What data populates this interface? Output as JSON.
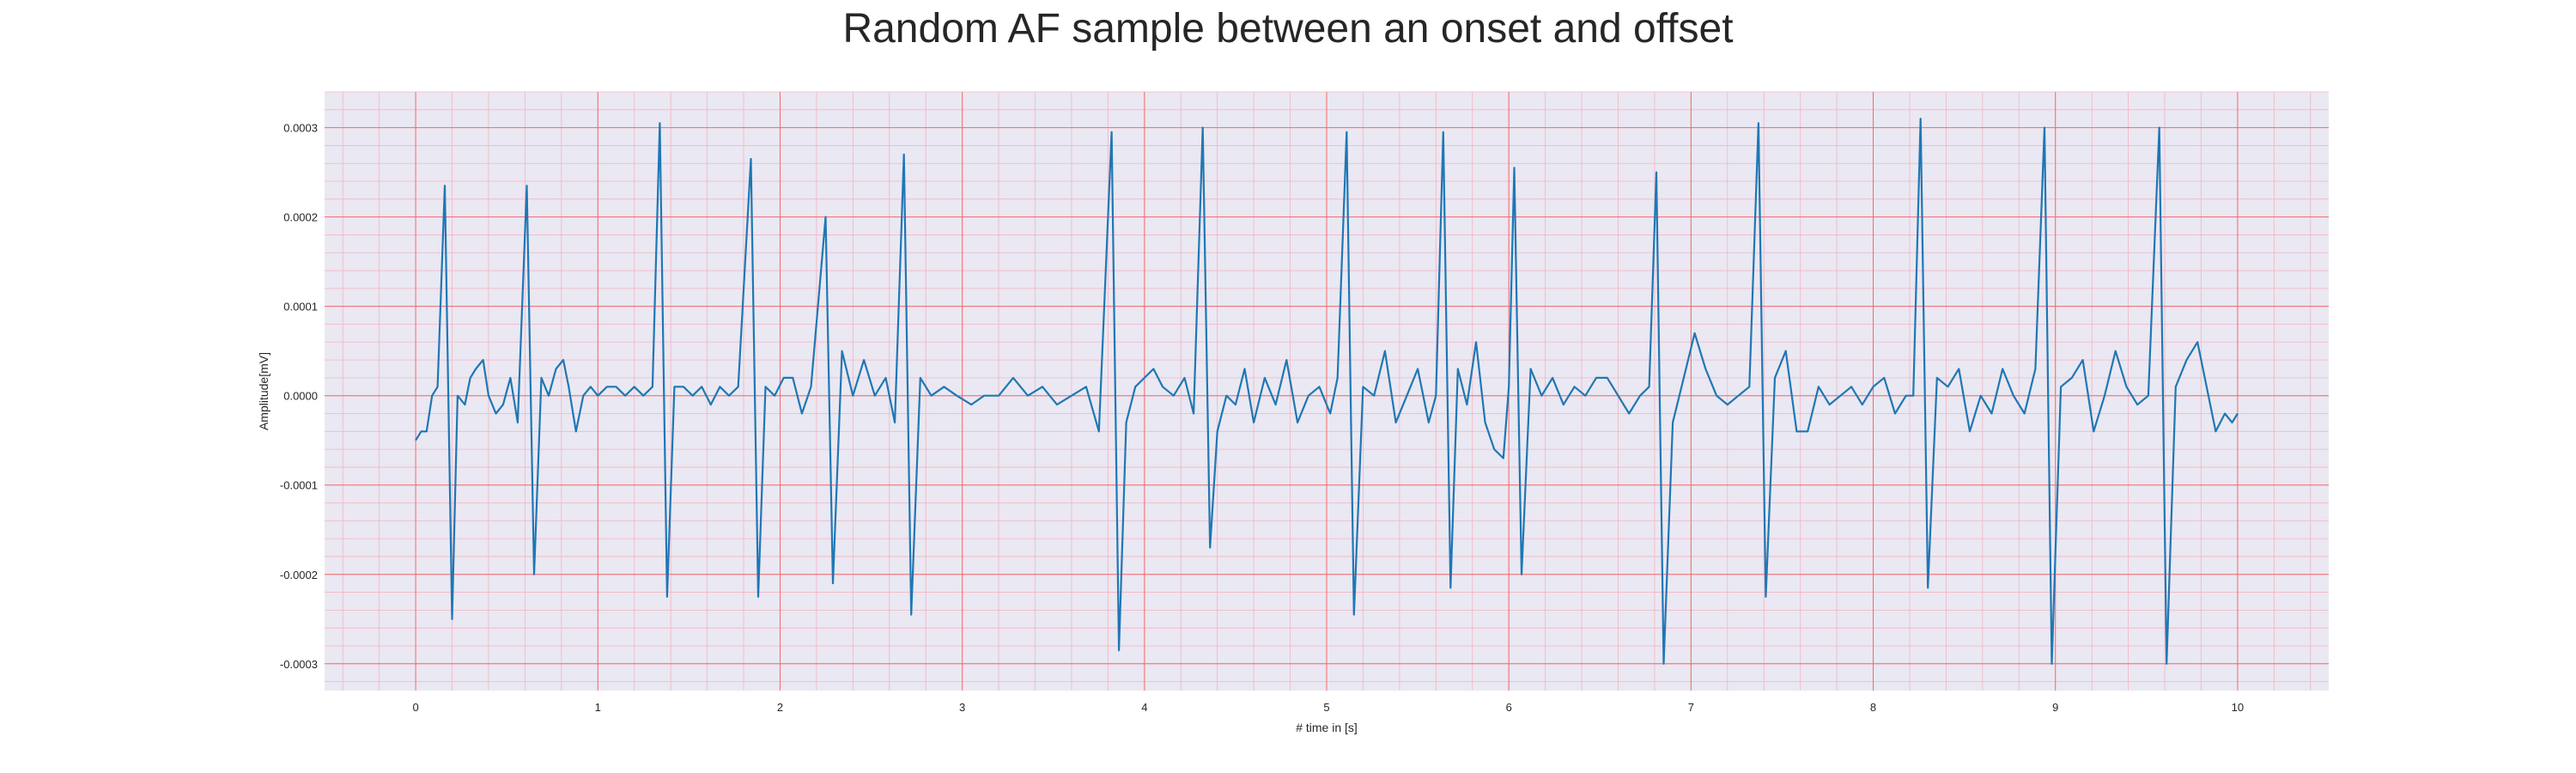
{
  "chart_data": {
    "type": "line",
    "title": "Random AF sample between an onset and offset",
    "xlabel": "# time in [s]",
    "ylabel": "Amplitude[mV]",
    "xlim": [
      -0.5,
      10.5
    ],
    "ylim": [
      -0.00033,
      0.00034
    ],
    "xticks": [
      0,
      1,
      2,
      3,
      4,
      5,
      6,
      7,
      8,
      9,
      10
    ],
    "xtick_labels": [
      "0",
      "1",
      "2",
      "3",
      "4",
      "5",
      "6",
      "7",
      "8",
      "9",
      "10"
    ],
    "yticks": [
      -0.0003,
      -0.0002,
      -0.0001,
      0.0,
      0.0001,
      0.0002,
      0.0003
    ],
    "ytick_labels": [
      "-0.0003",
      "-0.0002",
      "-0.0001",
      "0.0000",
      "0.0001",
      "0.0002",
      "0.0003"
    ],
    "grid": true,
    "minor_grid": true,
    "colors": {
      "line": "#1f77b4",
      "background": "#eae8f2",
      "major_grid": "#f26b6b",
      "minor_grid": "#f4b3c2"
    },
    "beats": [
      {
        "t": 0.16,
        "peak": 0.000235,
        "trough": -0.00025
      },
      {
        "t": 0.61,
        "peak": 0.000235,
        "trough": -0.0002
      },
      {
        "t": 1.34,
        "peak": 0.000305,
        "trough": -0.000225
      },
      {
        "t": 1.84,
        "peak": 0.000265,
        "trough": -0.000225
      },
      {
        "t": 2.25,
        "peak": 0.0002,
        "trough": -0.00021
      },
      {
        "t": 2.68,
        "peak": 0.00027,
        "trough": -0.000245
      },
      {
        "t": 3.82,
        "peak": 0.000295,
        "trough": -0.000285
      },
      {
        "t": 4.32,
        "peak": 0.0003,
        "trough": -0.00017
      },
      {
        "t": 5.11,
        "peak": 0.000295,
        "trough": -0.000245
      },
      {
        "t": 5.64,
        "peak": 0.000295,
        "trough": -0.000215
      },
      {
        "t": 6.03,
        "peak": 0.000255,
        "trough": -0.0002
      },
      {
        "t": 6.81,
        "peak": 0.00025,
        "trough": -0.0003
      },
      {
        "t": 7.37,
        "peak": 0.000305,
        "trough": -0.000225
      },
      {
        "t": 8.26,
        "peak": 0.00031,
        "trough": -0.000215
      },
      {
        "t": 8.94,
        "peak": 0.0003,
        "trough": -0.0003
      },
      {
        "t": 9.57,
        "peak": 0.0003,
        "trough": -0.0003
      }
    ],
    "series": [
      {
        "x": [
          0.0,
          0.03,
          0.06,
          0.09,
          0.12,
          0.16,
          0.2,
          0.23,
          0.27,
          0.3,
          0.33,
          0.37,
          0.4,
          0.44,
          0.48,
          0.52,
          0.56,
          0.61,
          0.65,
          0.69,
          0.73,
          0.77,
          0.81,
          0.84,
          0.88,
          0.92,
          0.96,
          1.0,
          1.05,
          1.1,
          1.15,
          1.2,
          1.25,
          1.3,
          1.34,
          1.38,
          1.42,
          1.47,
          1.52,
          1.57,
          1.62,
          1.67,
          1.72,
          1.77,
          1.84,
          1.88,
          1.92,
          1.97,
          2.02,
          2.07,
          2.12,
          2.17,
          2.25,
          2.29,
          2.34,
          2.4,
          2.46,
          2.52,
          2.58,
          2.63,
          2.68,
          2.72,
          2.77,
          2.83,
          2.9,
          2.97,
          3.05,
          3.12,
          3.2,
          3.28,
          3.36,
          3.44,
          3.52,
          3.6,
          3.68,
          3.75,
          3.82,
          3.86,
          3.9,
          3.95,
          4.0,
          4.05,
          4.1,
          4.16,
          4.22,
          4.27,
          4.32,
          4.36,
          4.4,
          4.45,
          4.5,
          4.55,
          4.6,
          4.66,
          4.72,
          4.78,
          4.84,
          4.9,
          4.96,
          5.02,
          5.06,
          5.11,
          5.15,
          5.2,
          5.26,
          5.32,
          5.38,
          5.44,
          5.5,
          5.56,
          5.6,
          5.64,
          5.68,
          5.72,
          5.77,
          5.82,
          5.87,
          5.92,
          5.97,
          6.0,
          6.03,
          6.07,
          6.12,
          6.18,
          6.24,
          6.3,
          6.36,
          6.42,
          6.48,
          6.54,
          6.6,
          6.66,
          6.72,
          6.77,
          6.81,
          6.85,
          6.9,
          6.96,
          7.02,
          7.08,
          7.14,
          7.2,
          7.26,
          7.32,
          7.37,
          7.41,
          7.46,
          7.52,
          7.58,
          7.64,
          7.7,
          7.76,
          7.82,
          7.88,
          7.94,
          8.0,
          8.06,
          8.12,
          8.18,
          8.22,
          8.26,
          8.3,
          8.35,
          8.41,
          8.47,
          8.53,
          8.59,
          8.65,
          8.71,
          8.77,
          8.83,
          8.89,
          8.94,
          8.98,
          9.03,
          9.09,
          9.15,
          9.21,
          9.27,
          9.33,
          9.39,
          9.45,
          9.51,
          9.57,
          9.61,
          9.66,
          9.72,
          9.78,
          9.83,
          9.88,
          9.93,
          9.97,
          10.0
        ],
        "y": [
          -5e-05,
          -4e-05,
          -4e-05,
          0.0,
          1e-05,
          0.000235,
          -0.00025,
          0.0,
          -1e-05,
          2e-05,
          3e-05,
          4e-05,
          0.0,
          -2e-05,
          -1e-05,
          2e-05,
          -3e-05,
          0.000235,
          -0.0002,
          2e-05,
          0.0,
          3e-05,
          4e-05,
          1e-05,
          -4e-05,
          0.0,
          1e-05,
          0.0,
          1e-05,
          1e-05,
          0.0,
          1e-05,
          0.0,
          1e-05,
          0.000305,
          -0.000225,
          1e-05,
          1e-05,
          0.0,
          1e-05,
          -1e-05,
          1e-05,
          0.0,
          1e-05,
          0.000265,
          -0.000225,
          1e-05,
          0.0,
          2e-05,
          2e-05,
          -2e-05,
          1e-05,
          0.0002,
          -0.00021,
          5e-05,
          0.0,
          4e-05,
          0.0,
          2e-05,
          -3e-05,
          0.00027,
          -0.000245,
          2e-05,
          0.0,
          1e-05,
          0.0,
          -1e-05,
          0.0,
          0.0,
          2e-05,
          0.0,
          1e-05,
          -1e-05,
          0.0,
          1e-05,
          -4e-05,
          0.000295,
          -0.000285,
          -3e-05,
          1e-05,
          2e-05,
          3e-05,
          1e-05,
          0.0,
          2e-05,
          -2e-05,
          0.0003,
          -0.00017,
          -4e-05,
          0.0,
          -1e-05,
          3e-05,
          -3e-05,
          2e-05,
          -1e-05,
          4e-05,
          -3e-05,
          0.0,
          1e-05,
          -2e-05,
          2e-05,
          0.000295,
          -0.000245,
          1e-05,
          0.0,
          5e-05,
          -3e-05,
          0.0,
          3e-05,
          -3e-05,
          0.0,
          0.000295,
          -0.000215,
          3e-05,
          -1e-05,
          6e-05,
          -3e-05,
          -6e-05,
          -7e-05,
          1e-05,
          0.000255,
          -0.0002,
          3e-05,
          0.0,
          2e-05,
          -1e-05,
          1e-05,
          0.0,
          2e-05,
          2e-05,
          0.0,
          -2e-05,
          0.0,
          1e-05,
          0.00025,
          -0.0003,
          -3e-05,
          2e-05,
          7e-05,
          3e-05,
          0.0,
          -1e-05,
          0.0,
          1e-05,
          0.000305,
          -0.000225,
          2e-05,
          5e-05,
          -4e-05,
          -4e-05,
          1e-05,
          -1e-05,
          0.0,
          1e-05,
          -1e-05,
          1e-05,
          2e-05,
          -2e-05,
          0.0,
          0.0,
          0.00031,
          -0.000215,
          2e-05,
          1e-05,
          3e-05,
          -4e-05,
          0.0,
          -2e-05,
          3e-05,
          0.0,
          -2e-05,
          3e-05,
          0.0003,
          -0.0003,
          1e-05,
          2e-05,
          4e-05,
          -4e-05,
          0.0,
          5e-05,
          1e-05,
          -1e-05,
          0.0,
          0.0003,
          -0.0003,
          1e-05,
          4e-05,
          6e-05,
          1e-05,
          -4e-05,
          -2e-05,
          -3e-05,
          -2e-05
        ]
      }
    ]
  }
}
